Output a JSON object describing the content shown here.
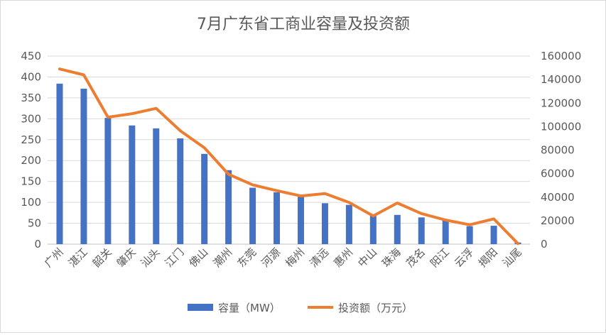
{
  "chart_data": {
    "type": "bar",
    "title": "7月广东省工商业容量及投资额",
    "categories": [
      "广州",
      "湛江",
      "韶关",
      "肇庆",
      "汕头",
      "江门",
      "佛山",
      "潮州",
      "东莞",
      "河源",
      "梅州",
      "清远",
      "惠州",
      "中山",
      "珠海",
      "茂名",
      "阳江",
      "云浮",
      "揭阳",
      "汕尾"
    ],
    "series": [
      {
        "name": "容量（MW）",
        "type": "bar",
        "axis": "left",
        "color": "#4472c4",
        "values": [
          384,
          372,
          302,
          284,
          277,
          253,
          216,
          177,
          135,
          124,
          113,
          98,
          94,
          71,
          70,
          64,
          57,
          43,
          44,
          4
        ]
      },
      {
        "name": "投资额（万元）",
        "type": "line",
        "axis": "right",
        "color": "#ed7d31",
        "values": [
          149000,
          144000,
          108000,
          111000,
          115500,
          96500,
          82000,
          59500,
          50500,
          45500,
          41000,
          43000,
          35500,
          24000,
          35000,
          26000,
          20500,
          16500,
          21500,
          500
        ]
      }
    ],
    "y_left": {
      "min": 0,
      "max": 450,
      "step": 50,
      "ticks": [
        "0",
        "50",
        "100",
        "150",
        "200",
        "250",
        "300",
        "350",
        "400",
        "450"
      ]
    },
    "y_right": {
      "min": 0,
      "max": 160000,
      "step": 20000,
      "ticks": [
        "0",
        "20000",
        "40000",
        "60000",
        "80000",
        "100000",
        "120000",
        "140000",
        "160000"
      ]
    },
    "grid": true,
    "legend": "bottom"
  }
}
